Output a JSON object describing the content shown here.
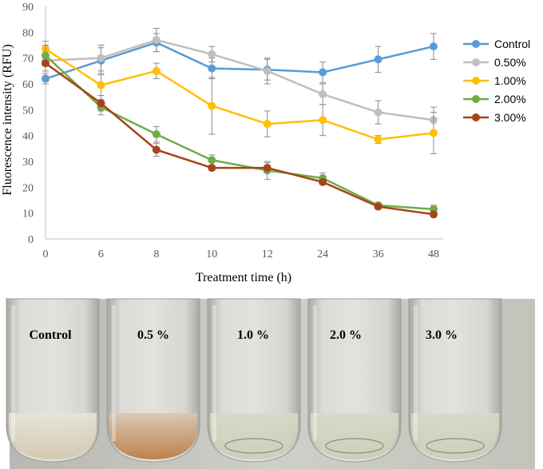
{
  "chart_data": {
    "type": "line",
    "title": "",
    "xlabel": "Treatment time (h)",
    "ylabel": "Fluorescence intensity (RFU)",
    "categories": [
      "0",
      "6",
      "8",
      "10",
      "12",
      "24",
      "36",
      "48"
    ],
    "ylim": [
      0,
      90
    ],
    "yticks": [
      "0",
      "10",
      "20",
      "30",
      "40",
      "50",
      "60",
      "70",
      "80",
      "90"
    ],
    "legend_position": "right",
    "series": [
      {
        "name": "Control",
        "color": "#5B9BD5",
        "values": [
          62,
          69,
          76,
          66,
          65.5,
          64.5,
          69.5,
          74.5
        ],
        "errors": [
          2,
          5,
          3.5,
          4,
          4,
          4,
          5,
          5
        ]
      },
      {
        "name": "0.50%",
        "color": "#BFBFBF",
        "values": [
          69,
          70,
          77,
          71.5,
          65,
          56,
          49,
          46
        ],
        "errors": [
          6,
          5,
          4.5,
          3,
          5,
          4,
          4.5,
          5
        ]
      },
      {
        "name": "1.00%",
        "color": "#FFC000",
        "values": [
          73.5,
          59.5,
          65,
          51.5,
          44.5,
          46,
          38.5,
          41
        ],
        "errors": [
          3,
          4,
          3,
          11,
          5,
          6,
          1.5,
          8
        ]
      },
      {
        "name": "2.00%",
        "color": "#70AD47",
        "values": [
          71,
          51,
          40.5,
          30.5,
          26.5,
          23.5,
          13,
          11.5
        ],
        "errors": [
          4,
          3,
          3,
          2,
          3.5,
          2,
          1,
          1.5
        ]
      },
      {
        "name": "3.00%",
        "color": "#A5441B",
        "values": [
          68,
          52.5,
          34.5,
          27.5,
          27.5,
          22,
          12.5,
          9.5
        ],
        "errors": [
          3,
          3,
          2.5,
          1,
          2,
          1,
          1,
          1
        ]
      }
    ]
  },
  "photo": {
    "labels": [
      "Control",
      "0.5 %",
      "1.0 %",
      "2.0 %",
      "3.0 %"
    ]
  }
}
